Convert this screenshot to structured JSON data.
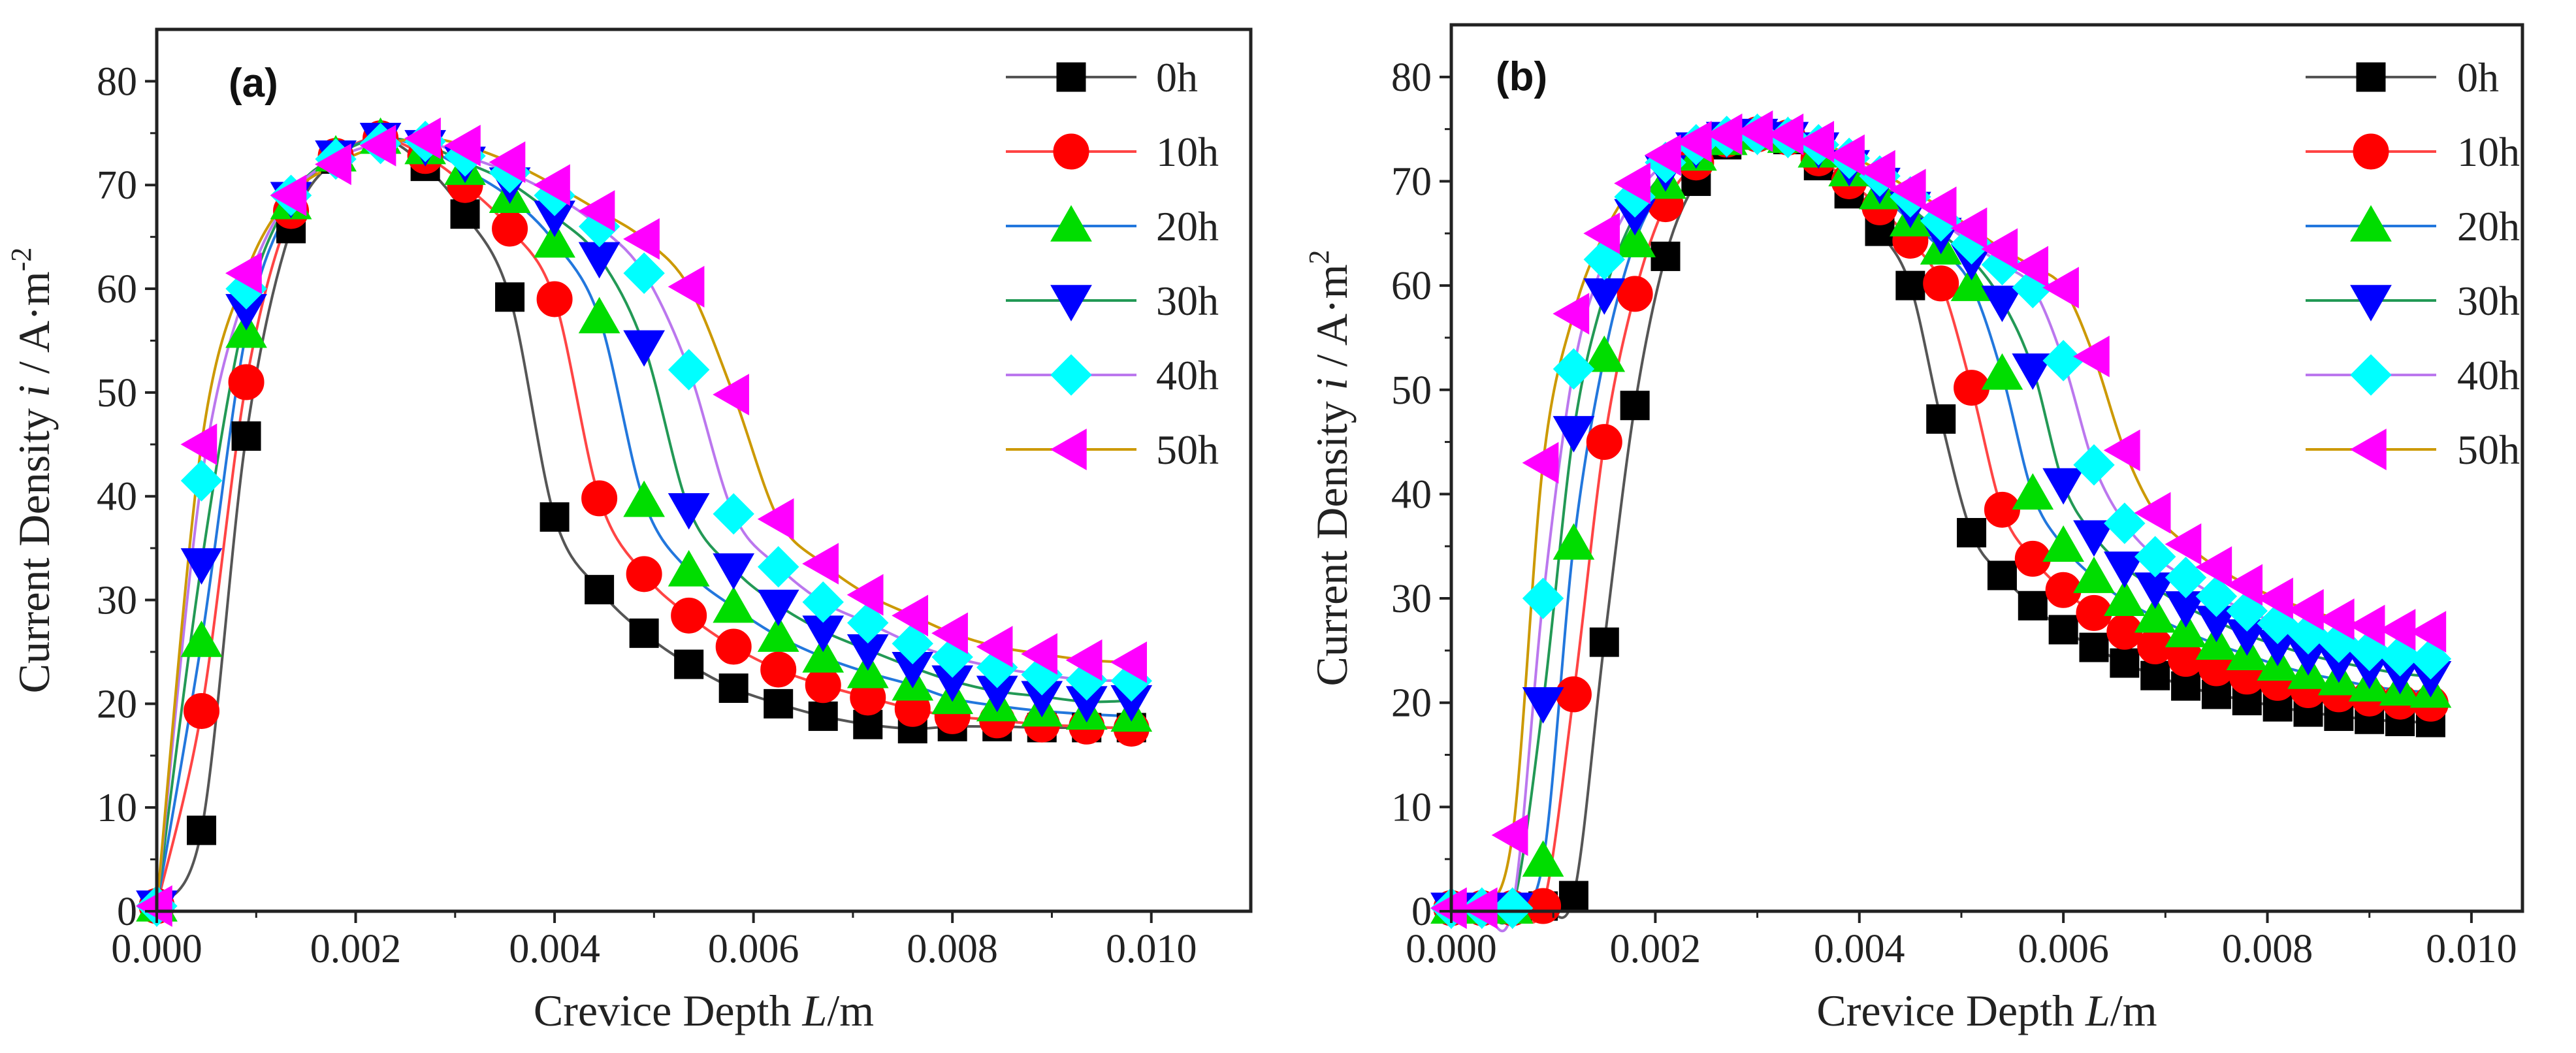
{
  "chart_data": [
    {
      "type": "line",
      "panel_label": "(a)",
      "xlabel": "Crevice Depth",
      "xlabel_var": "L",
      "xlabel_unit": "/m",
      "ylabel": "Current  Density",
      "ylabel_var": "i",
      "ylabel_unit": "/ A·m",
      "ylabel_exp": "-2",
      "xlim": [
        0,
        0.011
      ],
      "ylim": [
        0,
        85
      ],
      "xticks": [
        0,
        0.002,
        0.004,
        0.006,
        0.008,
        0.01
      ],
      "xtick_labels": [
        "0.000",
        "0.002",
        "0.004",
        "0.006",
        "0.008",
        "0.010"
      ],
      "yticks": [
        0,
        10,
        20,
        30,
        40,
        50,
        60,
        70,
        80
      ],
      "ytick_labels": [
        "0",
        "10",
        "20",
        "30",
        "40",
        "50",
        "60",
        "70",
        "80"
      ],
      "legend_position": "top-right",
      "x": [
        0.0,
        0.00045,
        0.0009,
        0.00135,
        0.0018,
        0.00225,
        0.0027,
        0.0031,
        0.00355,
        0.004,
        0.00445,
        0.0049,
        0.00535,
        0.0058,
        0.00625,
        0.0067,
        0.00715,
        0.0076,
        0.008,
        0.00845,
        0.0089,
        0.00935,
        0.0098
      ],
      "series": [
        {
          "name": "0h",
          "color": "#000000",
          "marker": "square",
          "values": [
            0.5,
            7.8,
            45.8,
            65.8,
            72.5,
            74.5,
            71.8,
            67.2,
            59.2,
            38.0,
            31.0,
            26.8,
            23.8,
            21.5,
            20.0,
            18.8,
            18.0,
            17.6,
            17.8,
            17.8,
            17.7,
            17.7,
            17.7
          ]
        },
        {
          "name": "10h",
          "color": "#ff0000",
          "marker": "circle",
          "values": [
            0.5,
            19.3,
            51.0,
            67.5,
            72.8,
            74.5,
            72.8,
            70.0,
            65.8,
            59.0,
            39.8,
            32.5,
            28.5,
            25.5,
            23.3,
            21.8,
            20.6,
            19.5,
            18.8,
            18.4,
            18.0,
            17.8,
            17.6
          ]
        },
        {
          "name": "20h",
          "color": "#00dd00",
          "marker": "triangle-up",
          "values": [
            0.5,
            26.0,
            55.8,
            68.2,
            72.8,
            74.5,
            73.5,
            71.5,
            68.8,
            64.5,
            57.2,
            39.5,
            32.8,
            29.3,
            26.5,
            24.5,
            23.0,
            21.8,
            20.5,
            19.8,
            19.3,
            19.0,
            18.8
          ]
        },
        {
          "name": "30h",
          "color": "#0000ff",
          "marker": "triangle-down",
          "values": [
            0.5,
            33.5,
            58.0,
            68.8,
            72.8,
            74.5,
            73.8,
            72.2,
            70.2,
            67.0,
            63.0,
            54.5,
            38.8,
            33.0,
            29.5,
            27.0,
            25.2,
            23.5,
            22.2,
            21.2,
            20.7,
            20.2,
            20.3
          ]
        },
        {
          "name": "40h",
          "color": "#00ffff",
          "marker": "diamond",
          "values": [
            0.5,
            41.5,
            60.0,
            69.0,
            72.5,
            74.0,
            74.2,
            72.8,
            71.2,
            69.0,
            66.0,
            61.5,
            52.2,
            38.3,
            33.2,
            29.8,
            27.8,
            25.8,
            24.5,
            23.5,
            22.8,
            22.3,
            22.2
          ]
        },
        {
          "name": "50h",
          "color": "#ff00ff",
          "marker": "triangle-left",
          "values": [
            0.5,
            45.0,
            61.5,
            69.0,
            72.0,
            73.8,
            74.5,
            73.8,
            72.2,
            70.0,
            67.5,
            64.8,
            60.2,
            49.8,
            37.8,
            33.5,
            30.5,
            28.5,
            26.8,
            25.5,
            24.8,
            24.2,
            24.0
          ]
        }
      ],
      "legend_line_colors": [
        "#555555",
        "#ff4444",
        "#2277dd",
        "#229955",
        "#bb77ee",
        "#cc9900"
      ]
    },
    {
      "type": "line",
      "panel_label": "(b)",
      "xlabel": "Crevice Depth",
      "xlabel_var": "L",
      "xlabel_unit": "/m",
      "ylabel": "Current Density",
      "ylabel_var": "i",
      "ylabel_unit": "/ A·m",
      "ylabel_exp": "2",
      "xlim": [
        0,
        0.0105
      ],
      "ylim": [
        0,
        85
      ],
      "xticks": [
        0,
        0.002,
        0.004,
        0.006,
        0.008,
        0.01
      ],
      "xtick_labels": [
        "0.000",
        "0.002",
        "0.004",
        "0.006",
        "0.008",
        "0.010"
      ],
      "yticks": [
        0,
        10,
        20,
        30,
        40,
        50,
        60,
        70,
        80
      ],
      "ytick_labels": [
        "0",
        "10",
        "20",
        "30",
        "40",
        "50",
        "60",
        "70",
        "80"
      ],
      "legend_position": "top-right",
      "x": [
        0.0,
        0.0003,
        0.0006,
        0.0009,
        0.0012,
        0.0015,
        0.0018,
        0.0021,
        0.0024,
        0.0027,
        0.003,
        0.0033,
        0.0036,
        0.0039,
        0.0042,
        0.0045,
        0.0048,
        0.0051,
        0.0054,
        0.0057,
        0.006,
        0.0063,
        0.0066,
        0.0069,
        0.0072,
        0.0075,
        0.0078,
        0.0081,
        0.0084,
        0.0087,
        0.009,
        0.0093,
        0.0096
      ],
      "series": [
        {
          "name": "0h",
          "color": "#000000",
          "marker": "square",
          "values": [
            0.3,
            0.3,
            0.3,
            0.5,
            1.5,
            25.8,
            48.5,
            62.8,
            70.0,
            73.5,
            74.5,
            74.0,
            71.5,
            68.8,
            65.2,
            60.0,
            47.2,
            36.3,
            32.2,
            29.3,
            27.0,
            25.3,
            23.8,
            22.6,
            21.6,
            20.8,
            20.2,
            19.6,
            19.1,
            18.7,
            18.4,
            18.2,
            18.1
          ]
        },
        {
          "name": "10h",
          "color": "#ff0000",
          "marker": "circle",
          "values": [
            0.3,
            0.3,
            0.3,
            0.5,
            20.8,
            45.0,
            59.2,
            67.8,
            71.8,
            74.0,
            74.5,
            74.2,
            72.2,
            70.0,
            67.5,
            64.3,
            60.2,
            50.2,
            38.5,
            33.8,
            30.8,
            28.6,
            26.8,
            25.4,
            24.2,
            23.3,
            22.5,
            21.9,
            21.2,
            20.8,
            20.4,
            20.1,
            19.9
          ]
        },
        {
          "name": "20h",
          "color": "#00dd00",
          "marker": "triangle-up",
          "values": [
            0.3,
            0.3,
            0.3,
            4.8,
            35.2,
            53.2,
            64.2,
            69.8,
            72.5,
            74.0,
            74.5,
            74.2,
            72.8,
            71.0,
            68.8,
            66.2,
            63.5,
            60.0,
            51.5,
            40.0,
            35.0,
            32.0,
            29.8,
            28.2,
            26.8,
            25.6,
            24.6,
            23.6,
            22.8,
            22.2,
            21.6,
            21.2,
            21.0
          ]
        },
        {
          "name": "30h",
          "color": "#0000ff",
          "marker": "triangle-down",
          "values": [
            0.3,
            0.3,
            0.3,
            20.0,
            46.0,
            59.2,
            66.8,
            71.0,
            73.2,
            74.2,
            74.5,
            74.2,
            73.2,
            71.5,
            69.8,
            67.5,
            65.0,
            62.5,
            58.5,
            52.0,
            41.0,
            36.0,
            33.0,
            31.0,
            29.2,
            27.8,
            26.5,
            25.5,
            24.6,
            23.9,
            23.3,
            22.8,
            22.5
          ]
        },
        {
          "name": "40h",
          "color": "#00ffff",
          "marker": "diamond",
          "values": [
            0.3,
            0.3,
            0.3,
            30.0,
            52.0,
            62.5,
            68.5,
            71.8,
            73.5,
            74.3,
            74.5,
            74.2,
            73.5,
            72.2,
            70.5,
            68.5,
            66.2,
            64.0,
            62.0,
            59.8,
            52.8,
            42.8,
            37.2,
            34.0,
            32.0,
            30.2,
            28.8,
            27.6,
            26.6,
            25.8,
            25.0,
            24.5,
            24.2
          ]
        },
        {
          "name": "50h",
          "color": "#ff00ff",
          "marker": "triangle-left",
          "values": [
            0.3,
            0.3,
            7.3,
            43.0,
            57.3,
            65.0,
            69.8,
            72.5,
            73.8,
            74.5,
            74.8,
            74.5,
            73.8,
            72.5,
            71.0,
            69.2,
            67.5,
            65.5,
            63.5,
            61.8,
            59.8,
            53.2,
            44.2,
            38.2,
            35.2,
            33.0,
            31.3,
            30.0,
            28.9,
            28.0,
            27.4,
            27.0,
            26.8
          ]
        }
      ],
      "legend_line_colors": [
        "#555555",
        "#ff4444",
        "#2277dd",
        "#229955",
        "#bb77ee",
        "#cc9900"
      ]
    }
  ]
}
